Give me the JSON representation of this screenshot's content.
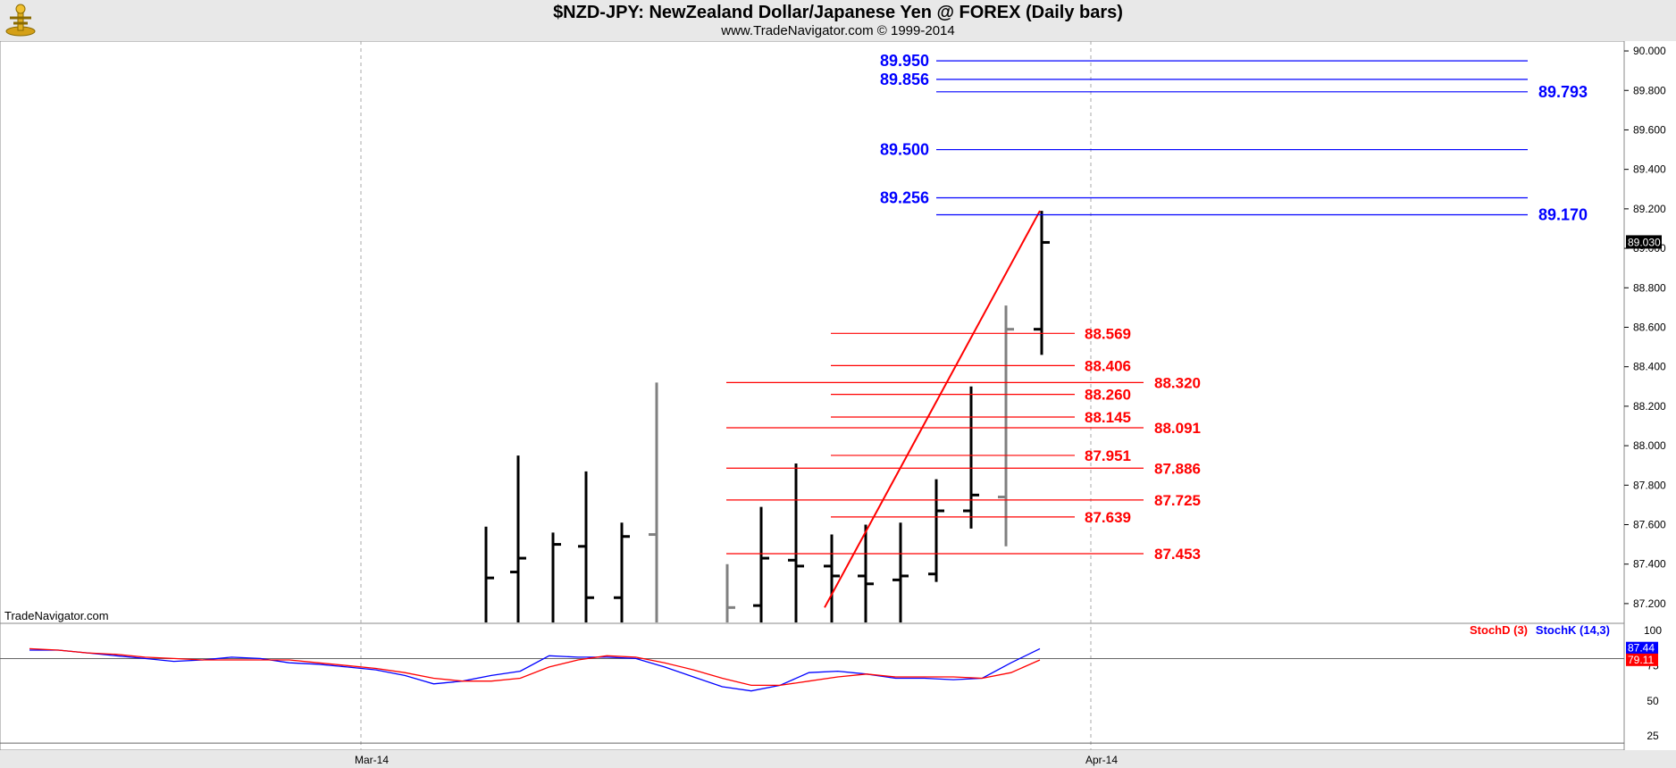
{
  "header": {
    "title": "$NZD-JPY:  NewZealand Dollar/Japanese Yen @ FOREX  (Daily bars)",
    "subtitle": "www.TradeNavigator.com © 1999-2014"
  },
  "watermark": "TradeNavigator.com",
  "colors": {
    "background": "#ffffff",
    "frame": "#e8e8e8",
    "blue": "#0000ff",
    "red": "#ff0000",
    "bar": "#000000",
    "gray_bar": "#808080"
  },
  "chart_data": [
    {
      "type": "bar",
      "subtype": "ohlc",
      "title": "$NZD-JPY:  NewZealand Dollar/Japanese Yen @ FOREX  (Daily bars)",
      "ylim": [
        87.1,
        90.05
      ],
      "y_ticks": [
        "90.000",
        "89.800",
        "89.600",
        "89.400",
        "89.200",
        "89.000",
        "88.800",
        "88.600",
        "88.400",
        "88.200",
        "88.000",
        "87.800",
        "87.600",
        "87.400",
        "87.200"
      ],
      "x_ticks": [
        "Mar-14",
        "Apr-14"
      ],
      "last_price": "89.030",
      "grid": "vertical dashed",
      "bars": [
        {
          "high": 87.59,
          "low": 87.1,
          "open": null,
          "close": 87.33,
          "color": "black"
        },
        {
          "high": 87.95,
          "low": 87.1,
          "open": 87.36,
          "close": 87.43,
          "color": "black"
        },
        {
          "high": 87.56,
          "low": 87.1,
          "open": null,
          "close": 87.5,
          "color": "black"
        },
        {
          "high": 87.87,
          "low": 87.1,
          "open": 87.49,
          "close": 87.23,
          "color": "black"
        },
        {
          "high": 87.61,
          "low": 87.1,
          "open": 87.23,
          "close": 87.54,
          "color": "black"
        },
        {
          "high": 88.32,
          "low": 87.1,
          "open": 87.55,
          "close": null,
          "color": "gray"
        },
        {
          "high": 87.4,
          "low": 87.1,
          "open": null,
          "close": 87.18,
          "color": "gray"
        },
        {
          "high": 87.69,
          "low": 87.1,
          "open": 87.19,
          "close": 87.43,
          "color": "black"
        },
        {
          "high": 87.91,
          "low": 87.1,
          "open": 87.42,
          "close": 87.39,
          "color": "black"
        },
        {
          "high": 87.55,
          "low": 87.1,
          "open": 87.39,
          "close": 87.34,
          "color": "black"
        },
        {
          "high": 87.6,
          "low": 87.1,
          "open": 87.34,
          "close": 87.3,
          "color": "black"
        },
        {
          "high": 87.61,
          "low": 87.1,
          "open": 87.32,
          "close": 87.34,
          "color": "black"
        },
        {
          "high": 87.83,
          "low": 87.31,
          "open": 87.35,
          "close": 87.67,
          "color": "black"
        },
        {
          "high": 88.3,
          "low": 87.58,
          "open": 87.67,
          "close": 87.75,
          "color": "black"
        },
        {
          "high": 88.71,
          "low": 87.49,
          "open": 87.74,
          "close": 88.59,
          "color": "gray"
        },
        {
          "high": 89.19,
          "low": 88.46,
          "open": 88.59,
          "close": 89.03,
          "color": "black"
        }
      ],
      "trend_line": {
        "from_price": 87.18,
        "to_price": 89.19,
        "color": "red"
      },
      "fib_levels_blue": [
        {
          "label": "89.950",
          "value": 89.95
        },
        {
          "label": "89.856",
          "value": 89.856
        },
        {
          "label": "89.793",
          "value": 89.793
        },
        {
          "label": "89.500",
          "value": 89.5
        },
        {
          "label": "89.256",
          "value": 89.256
        },
        {
          "label": "89.170",
          "value": 89.17
        }
      ],
      "fib_levels_red": [
        {
          "label": "88.569",
          "value": 88.569
        },
        {
          "label": "88.406",
          "value": 88.406
        },
        {
          "label": "88.320",
          "value": 88.32
        },
        {
          "label": "88.260",
          "value": 88.26
        },
        {
          "label": "88.145",
          "value": 88.145
        },
        {
          "label": "88.091",
          "value": 88.091
        },
        {
          "label": "87.951",
          "value": 87.951
        },
        {
          "label": "87.886",
          "value": 87.886
        },
        {
          "label": "87.725",
          "value": 87.725
        },
        {
          "label": "87.639",
          "value": 87.639
        },
        {
          "label": "87.453",
          "value": 87.453
        }
      ]
    },
    {
      "type": "line",
      "title": "Stochastic",
      "ylim": [
        15,
        105
      ],
      "y_ticks": [
        "100",
        "75",
        "50",
        "25"
      ],
      "legend": [
        "StochD (3)",
        "StochK (14,3)"
      ],
      "legend_placement": "top-right",
      "last_values": {
        "StochK": "87.44",
        "StochD": "79.11"
      },
      "series": [
        {
          "name": "StochK (14,3)",
          "color": "blue",
          "values": [
            86,
            86,
            84,
            82,
            80,
            78,
            79,
            81,
            80,
            77,
            76,
            74,
            72,
            68,
            62,
            64,
            68,
            71,
            82,
            81,
            81,
            80,
            74,
            67,
            60,
            57,
            61,
            70,
            71,
            69,
            66,
            66,
            65,
            66,
            77,
            87
          ]
        },
        {
          "name": "StochD (3)",
          "color": "red",
          "values": [
            87,
            86,
            84,
            83,
            81,
            80,
            79,
            79,
            79,
            79,
            77,
            75,
            73,
            70,
            66,
            64,
            64,
            66,
            74,
            79,
            82,
            81,
            77,
            72,
            66,
            61,
            61,
            64,
            67,
            69,
            67,
            67,
            67,
            66,
            70,
            79
          ]
        }
      ]
    }
  ]
}
